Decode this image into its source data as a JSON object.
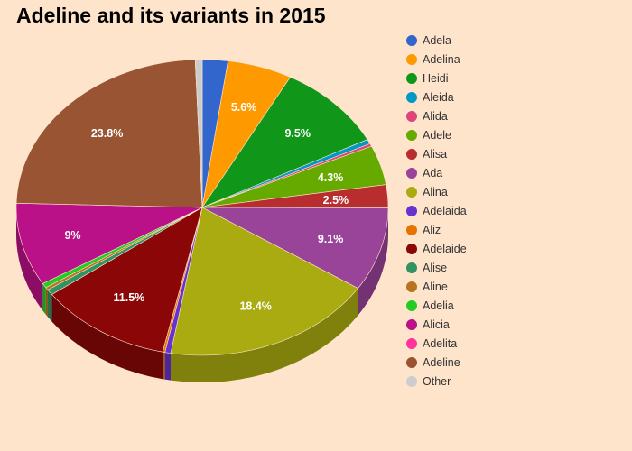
{
  "chart_data": {
    "type": "pie",
    "title": "Adeline and its variants in 2015",
    "legend_position": "right",
    "slices": [
      {
        "name": "Adela",
        "value": 2.2,
        "label": "",
        "color": "#3366cc"
      },
      {
        "name": "Adelina",
        "value": 5.6,
        "label": "5.6%",
        "color": "#ff9900"
      },
      {
        "name": "Heidi",
        "value": 9.5,
        "label": "9.5%",
        "color": "#109618"
      },
      {
        "name": "Aleida",
        "value": 0.5,
        "label": "",
        "color": "#0099c6"
      },
      {
        "name": "Alida",
        "value": 0.3,
        "label": "",
        "color": "#dd4477"
      },
      {
        "name": "Adele",
        "value": 4.3,
        "label": "4.3%",
        "color": "#66aa00"
      },
      {
        "name": "Alisa",
        "value": 2.5,
        "label": "2.5%",
        "color": "#b82e2e"
      },
      {
        "name": "Ada",
        "value": 9.1,
        "label": "9.1%",
        "color": "#994499"
      },
      {
        "name": "Alina",
        "value": 18.4,
        "label": "18.4%",
        "color": "#aaaa11"
      },
      {
        "name": "Adelaida",
        "value": 0.5,
        "label": "",
        "color": "#6633cc"
      },
      {
        "name": "Aliz",
        "value": 0.2,
        "label": "",
        "color": "#e67300"
      },
      {
        "name": "Adelaide",
        "value": 11.5,
        "label": "11.5%",
        "color": "#8b0707"
      },
      {
        "name": "Alise",
        "value": 0.6,
        "label": "",
        "color": "#329262"
      },
      {
        "name": "Aline",
        "value": 0.3,
        "label": "",
        "color": "#b77322"
      },
      {
        "name": "Adelia",
        "value": 0.5,
        "label": "",
        "color": "#22cc22"
      },
      {
        "name": "Alicia",
        "value": 9.0,
        "label": "9%",
        "color": "#bb1188"
      },
      {
        "name": "Adelita",
        "value": 0.0,
        "label": "",
        "color": "#ff3399"
      },
      {
        "name": "Adeline",
        "value": 23.8,
        "label": "23.8%",
        "color": "#995533"
      },
      {
        "name": "Other",
        "value": 0.6,
        "label": "",
        "color": "#cccccc"
      }
    ]
  }
}
